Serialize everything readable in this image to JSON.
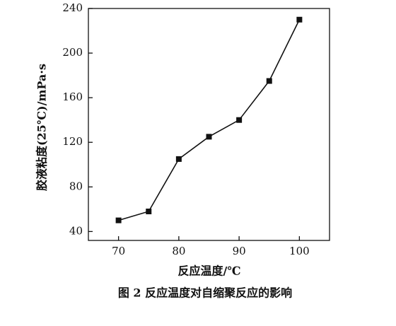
{
  "chart_data": {
    "type": "line",
    "caption": "图 2  反应温度对自缩聚反应的影响",
    "x_label": "反应温度/℃",
    "y_label": "胶液粘度(25℃)/mPa·s",
    "x": [
      70,
      75,
      80,
      85,
      90,
      95,
      100
    ],
    "series": [
      {
        "name": "viscosity",
        "color": "#111111",
        "values": [
          50,
          58,
          105,
          125,
          140,
          175,
          230
        ]
      }
    ],
    "xlim": [
      65,
      105
    ],
    "xticks": [
      70,
      80,
      90,
      100
    ],
    "ylim": [
      32,
      240
    ],
    "yticks": [
      40,
      80,
      120,
      160,
      200,
      240
    ]
  }
}
